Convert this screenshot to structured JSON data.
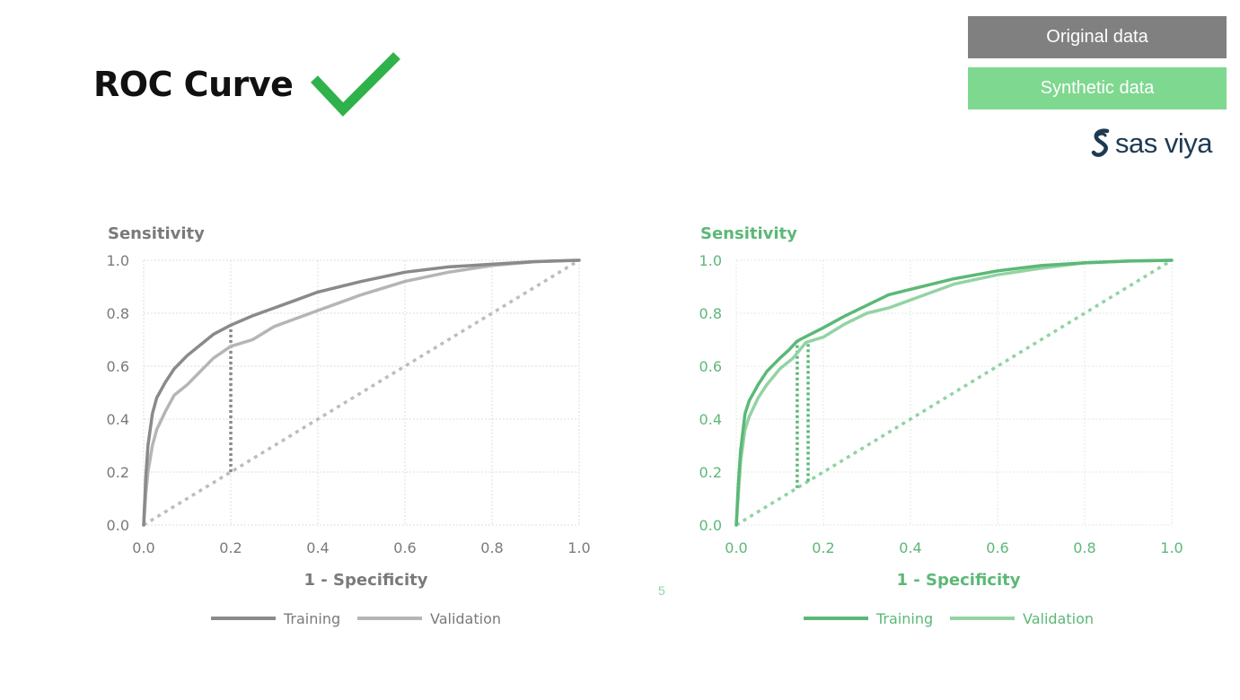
{
  "title": "ROC Curve",
  "icons": {
    "title_check": "checkmark-icon",
    "brand": "sas-viya-logo"
  },
  "legend_boxes": [
    {
      "label": "Original data",
      "color": "#808080"
    },
    {
      "label": "Synthetic data",
      "color": "#7fd88f"
    }
  ],
  "brand": {
    "text": "sas viya"
  },
  "stray_text": "5",
  "chart_data": [
    {
      "type": "line",
      "ylabel": "Sensitivity",
      "xlabel": "1 - Specificity",
      "xlim": [
        0,
        1
      ],
      "ylim": [
        0,
        1
      ],
      "xticks": [
        "0.0",
        "0.2",
        "0.4",
        "0.6",
        "0.8",
        "1.0"
      ],
      "yticks": [
        "0.0",
        "0.2",
        "0.4",
        "0.6",
        "0.8",
        "1.0"
      ],
      "grid": true,
      "legend_position": "bottom",
      "colors": {
        "text": "#7a7a7a",
        "grid": "#dddddd",
        "training": "#8a8a8a",
        "validation": "#b5b5b5",
        "diagonal": "#bdbdbd",
        "cutoff": "#8a8a8a"
      },
      "series": [
        {
          "name": "Training",
          "x": [
            0,
            0.005,
            0.01,
            0.02,
            0.03,
            0.05,
            0.07,
            0.1,
            0.13,
            0.16,
            0.2,
            0.25,
            0.3,
            0.35,
            0.4,
            0.5,
            0.6,
            0.7,
            0.8,
            0.9,
            1
          ],
          "y": [
            0,
            0.18,
            0.3,
            0.42,
            0.48,
            0.54,
            0.59,
            0.64,
            0.68,
            0.72,
            0.755,
            0.79,
            0.82,
            0.85,
            0.88,
            0.92,
            0.955,
            0.975,
            0.985,
            0.995,
            1
          ]
        },
        {
          "name": "Validation",
          "x": [
            0,
            0.005,
            0.01,
            0.02,
            0.03,
            0.05,
            0.07,
            0.1,
            0.13,
            0.16,
            0.2,
            0.25,
            0.3,
            0.35,
            0.4,
            0.5,
            0.6,
            0.7,
            0.8,
            0.9,
            1
          ],
          "y": [
            0,
            0.12,
            0.2,
            0.3,
            0.36,
            0.43,
            0.49,
            0.53,
            0.58,
            0.63,
            0.675,
            0.7,
            0.75,
            0.78,
            0.81,
            0.87,
            0.92,
            0.955,
            0.98,
            0.995,
            1
          ]
        }
      ],
      "reference_line": {
        "x": [
          0,
          1
        ],
        "y": [
          0,
          1
        ]
      },
      "cutoff_lines": [
        {
          "x": 0.2,
          "y_from": 0.2,
          "y_to": 0.755
        }
      ]
    },
    {
      "type": "line",
      "ylabel": "Sensitivity",
      "xlabel": "1 - Specificity",
      "xlim": [
        0,
        1
      ],
      "ylim": [
        0,
        1
      ],
      "xticks": [
        "0.0",
        "0.2",
        "0.4",
        "0.6",
        "0.8",
        "1.0"
      ],
      "yticks": [
        "0.0",
        "0.2",
        "0.4",
        "0.6",
        "0.8",
        "1.0"
      ],
      "grid": true,
      "legend_position": "bottom",
      "colors": {
        "text": "#5cb877",
        "grid": "#dcebe0",
        "training": "#5cb877",
        "validation": "#93d3a3",
        "diagonal": "#8fd3a3",
        "cutoff": "#5cb877"
      },
      "series": [
        {
          "name": "Training",
          "x": [
            0,
            0.005,
            0.01,
            0.02,
            0.03,
            0.05,
            0.07,
            0.1,
            0.12,
            0.14,
            0.17,
            0.2,
            0.25,
            0.3,
            0.35,
            0.4,
            0.5,
            0.6,
            0.7,
            0.8,
            0.9,
            1
          ],
          "y": [
            0,
            0.16,
            0.28,
            0.42,
            0.47,
            0.53,
            0.58,
            0.63,
            0.66,
            0.695,
            0.72,
            0.745,
            0.79,
            0.83,
            0.87,
            0.89,
            0.93,
            0.96,
            0.98,
            0.99,
            0.997,
            1
          ]
        },
        {
          "name": "Validation",
          "x": [
            0,
            0.005,
            0.01,
            0.02,
            0.03,
            0.05,
            0.07,
            0.1,
            0.13,
            0.16,
            0.2,
            0.25,
            0.3,
            0.35,
            0.4,
            0.5,
            0.6,
            0.7,
            0.8,
            0.9,
            1
          ],
          "y": [
            0,
            0.12,
            0.24,
            0.36,
            0.41,
            0.48,
            0.53,
            0.59,
            0.63,
            0.69,
            0.71,
            0.76,
            0.8,
            0.82,
            0.85,
            0.91,
            0.945,
            0.97,
            0.99,
            0.997,
            1
          ]
        }
      ],
      "reference_line": {
        "x": [
          0,
          1
        ],
        "y": [
          0,
          1
        ]
      },
      "cutoff_lines": [
        {
          "x": 0.14,
          "y_from": 0.14,
          "y_to": 0.695
        },
        {
          "x": 0.165,
          "y_from": 0.165,
          "y_to": 0.69
        }
      ]
    }
  ]
}
